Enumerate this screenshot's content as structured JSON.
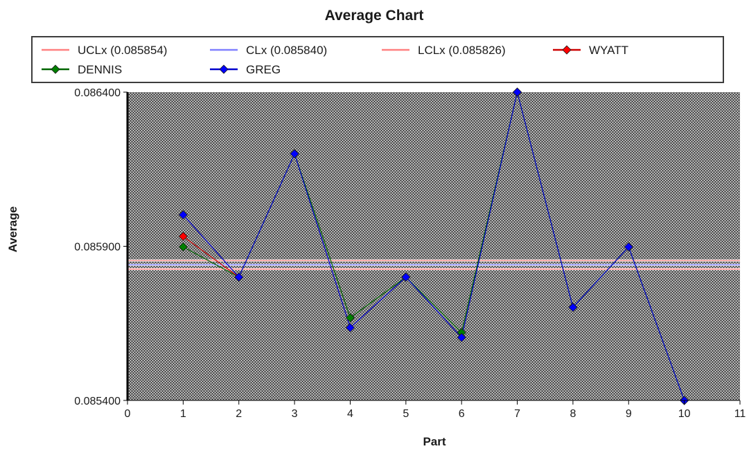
{
  "chart_data": {
    "type": "line",
    "title": "Average Chart",
    "xlabel": "Part",
    "ylabel": "Average",
    "xlim": [
      0,
      11
    ],
    "ylim": [
      0.0854,
      0.0864
    ],
    "x_ticks": [
      0,
      1,
      2,
      3,
      4,
      5,
      6,
      7,
      8,
      9,
      10,
      11
    ],
    "y_ticks": [
      "0.085400",
      "0.085900",
      "0.086400"
    ],
    "y_tick_values": [
      0.0854,
      0.0859,
      0.0864
    ],
    "grid": false,
    "plot_background": "crosshatch",
    "legend_position": "top",
    "control_lines": [
      {
        "name": "UCLx (0.085854)",
        "value": 0.085854,
        "color": "#ff8080"
      },
      {
        "name": "CLx (0.085840)",
        "value": 0.08584,
        "color": "#8080ff"
      },
      {
        "name": "LCLx (0.085826)",
        "value": 0.085826,
        "color": "#ff8080"
      }
    ],
    "series": [
      {
        "name": "WYATT",
        "color": "#ff0000",
        "line_color": "#cc0000",
        "x": [
          1,
          2
        ],
        "values": [
          0.085932,
          0.0858
        ]
      },
      {
        "name": "DENNIS",
        "color": "#008000",
        "line_color": "#006400",
        "x": [
          1,
          2,
          3,
          4,
          5,
          6,
          7,
          8,
          9,
          10
        ],
        "values": [
          0.085898,
          0.0858,
          0.0862,
          0.085668,
          0.0858,
          0.08562,
          0.0864,
          0.085702,
          0.085898,
          0.0854
        ]
      },
      {
        "name": "GREG",
        "color": "#0000ff",
        "line_color": "#0000cc",
        "x": [
          1,
          2,
          3,
          4,
          5,
          6,
          7,
          8,
          9,
          10
        ],
        "values": [
          0.086002,
          0.0858,
          0.0862,
          0.085636,
          0.0858,
          0.085604,
          0.0864,
          0.085702,
          0.085898,
          0.0854
        ]
      }
    ]
  }
}
